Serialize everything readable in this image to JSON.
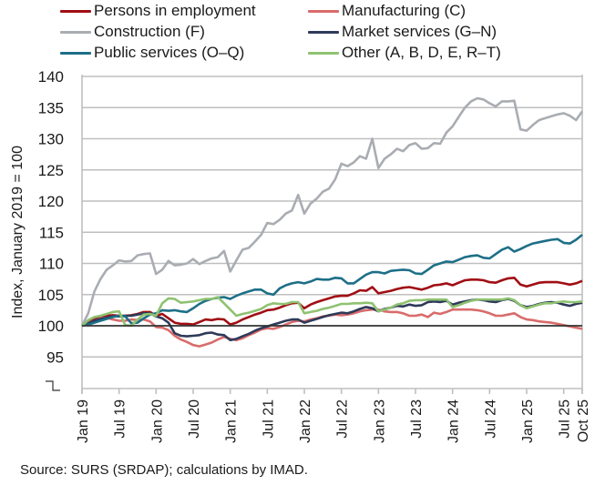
{
  "chart_data": {
    "type": "line",
    "title": "",
    "xlabel": "",
    "ylabel": "Index, January 2019 = 100",
    "ylim": [
      95,
      140
    ],
    "yticks": [
      95,
      100,
      105,
      110,
      115,
      120,
      125,
      130,
      135,
      140
    ],
    "grid": true,
    "legend_position": "top",
    "reference_line": 100,
    "x_start": "2019-01",
    "x_end": "2025-10",
    "x_tick_labels": [
      {
        "label": "Jan 19",
        "month_index": 0
      },
      {
        "label": "Jul 19",
        "month_index": 6
      },
      {
        "label": "Jan 20",
        "month_index": 12
      },
      {
        "label": "Jul 20",
        "month_index": 18
      },
      {
        "label": "Jan 21",
        "month_index": 24
      },
      {
        "label": "Jul 21",
        "month_index": 30
      },
      {
        "label": "Jan 22",
        "month_index": 36
      },
      {
        "label": "Jul 22",
        "month_index": 42
      },
      {
        "label": "Jan 23",
        "month_index": 48
      },
      {
        "label": "Jul 23",
        "month_index": 54
      },
      {
        "label": "Jan 24",
        "month_index": 60
      },
      {
        "label": "Jul 24",
        "month_index": 66
      },
      {
        "label": "Jan 25",
        "month_index": 72
      },
      {
        "label": "Jul 25",
        "month_index": 78
      },
      {
        "label": "Oct 25",
        "month_index": 81
      }
    ],
    "series": [
      {
        "name": "Persons in employment",
        "color": "#a00e14",
        "values": [
          100,
          100.6,
          101.0,
          101.3,
          101.6,
          101.7,
          101.6,
          101.6,
          101.7,
          101.9,
          102.2,
          102.2,
          101.6,
          101.9,
          101.2,
          100.5,
          100.3,
          100.3,
          100.2,
          100.6,
          101.0,
          100.9,
          101.1,
          101.0,
          100.2,
          100.5,
          101.0,
          101.4,
          101.8,
          102.1,
          102.5,
          102.6,
          102.9,
          103.3,
          103.6,
          103.7,
          102.8,
          103.4,
          103.8,
          104.1,
          104.4,
          104.7,
          104.8,
          104.8,
          105.2,
          105.7,
          105.6,
          106.2,
          105.2,
          105.4,
          105.6,
          105.9,
          106.1,
          106.2,
          106.0,
          105.8,
          106.1,
          106.5,
          106.6,
          106.8,
          106.5,
          106.9,
          107.3,
          107.4,
          107.4,
          107.3,
          107.0,
          106.9,
          107.3,
          107.6,
          107.7,
          106.6,
          106.3,
          106.6,
          106.9,
          107.0,
          107.0,
          107.0,
          106.8,
          106.6,
          106.8,
          107.2
        ]
      },
      {
        "name": "Manufacturing (C)",
        "color": "#d96b6b",
        "values": [
          100,
          100.5,
          100.8,
          101.2,
          101.3,
          101.0,
          100.8,
          100.8,
          101.0,
          100.9,
          101.0,
          100.7,
          99.8,
          99.7,
          99.3,
          98.4,
          97.8,
          97.4,
          96.9,
          96.7,
          97.0,
          97.3,
          97.8,
          98.2,
          97.9,
          97.7,
          98.0,
          98.5,
          98.9,
          99.4,
          99.6,
          99.5,
          99.8,
          100.2,
          100.6,
          100.8,
          100.7,
          101.0,
          101.2,
          101.5,
          101.6,
          101.8,
          101.7,
          101.8,
          102.0,
          102.3,
          102.5,
          102.6,
          102.6,
          102.3,
          102.2,
          102.2,
          102.0,
          101.6,
          101.6,
          101.8,
          101.4,
          102.1,
          101.9,
          102.2,
          102.6,
          102.6,
          102.6,
          102.6,
          102.5,
          102.3,
          102.0,
          101.6,
          101.6,
          101.8,
          102.0,
          101.4,
          101.0,
          100.9,
          100.7,
          100.6,
          100.5,
          100.3,
          100.1,
          99.9,
          99.7,
          99.5
        ]
      },
      {
        "name": "Construction (F)",
        "color": "#a9adb2",
        "values": [
          100,
          102.0,
          105.5,
          107.5,
          109.0,
          109.7,
          110.5,
          110.3,
          110.4,
          111.3,
          111.5,
          111.6,
          108.3,
          109.0,
          110.4,
          109.7,
          109.8,
          110.0,
          110.7,
          109.9,
          110.4,
          110.8,
          111.0,
          112.0,
          108.7,
          110.5,
          112.2,
          112.5,
          113.5,
          114.6,
          116.5,
          116.3,
          117.0,
          118.0,
          118.5,
          121.0,
          118.0,
          119.6,
          120.4,
          121.5,
          122.0,
          123.5,
          126.0,
          125.6,
          126.2,
          127.2,
          126.8,
          130.0,
          125.3,
          126.8,
          127.5,
          128.4,
          128.0,
          129.0,
          129.3,
          128.4,
          128.5,
          129.3,
          129.2,
          131.0,
          132.0,
          133.5,
          135.0,
          136.0,
          136.5,
          136.3,
          135.7,
          135.2,
          136.0,
          136.0,
          136.1,
          131.5,
          131.3,
          132.2,
          133.0,
          133.3,
          133.6,
          133.9,
          134.1,
          133.7,
          133.0,
          134.4
        ]
      },
      {
        "name": "Market services (G–N)",
        "color": "#2e3a59",
        "values": [
          100,
          100.4,
          100.8,
          101.1,
          101.3,
          101.5,
          101.5,
          101.6,
          101.6,
          101.8,
          102.0,
          102.0,
          101.5,
          101.2,
          100.5,
          98.8,
          98.4,
          98.3,
          98.4,
          98.5,
          98.8,
          98.9,
          98.6,
          98.5,
          97.7,
          97.9,
          98.3,
          98.7,
          99.2,
          99.6,
          99.9,
          100.2,
          100.5,
          100.8,
          101.0,
          101.0,
          100.5,
          100.8,
          101.1,
          101.4,
          101.7,
          101.9,
          102.1,
          102.0,
          102.3,
          102.7,
          103.0,
          102.8,
          102.3,
          102.7,
          102.9,
          103.2,
          103.1,
          103.4,
          103.2,
          103.3,
          103.8,
          103.9,
          103.8,
          104.0,
          103.4,
          103.7,
          103.9,
          104.1,
          104.2,
          104.1,
          103.9,
          103.8,
          104.1,
          104.3,
          104.0,
          103.3,
          103.0,
          103.2,
          103.5,
          103.7,
          103.8,
          103.7,
          103.4,
          103.2,
          103.5,
          103.7
        ]
      },
      {
        "name": "Public services (O–Q)",
        "color": "#1d6f87",
        "values": [
          100,
          100.2,
          100.5,
          100.8,
          101.1,
          101.4,
          101.6,
          101.5,
          100.4,
          100.5,
          101.2,
          101.8,
          102.0,
          102.5,
          102.4,
          102.5,
          102.3,
          102.2,
          102.8,
          103.5,
          104.0,
          104.3,
          104.5,
          104.6,
          104.3,
          104.8,
          105.2,
          105.5,
          105.8,
          105.8,
          105.2,
          105.0,
          106.0,
          106.5,
          106.8,
          107.0,
          106.8,
          107.1,
          107.5,
          107.4,
          107.4,
          107.7,
          107.6,
          106.8,
          106.8,
          107.5,
          108.2,
          108.6,
          108.6,
          108.4,
          108.8,
          108.9,
          109.0,
          108.9,
          108.4,
          108.3,
          109.0,
          109.7,
          110.0,
          110.3,
          110.2,
          110.6,
          111.0,
          111.2,
          111.3,
          110.9,
          110.8,
          111.5,
          112.2,
          112.6,
          111.9,
          112.3,
          112.8,
          113.2,
          113.4,
          113.6,
          113.8,
          113.9,
          113.3,
          113.2,
          113.8,
          114.6
        ]
      },
      {
        "name": "Other (A, B, D, E, R–T)",
        "color": "#8fc271",
        "values": [
          100,
          100.9,
          101.4,
          101.6,
          101.9,
          102.2,
          102.3,
          100.1,
          100.0,
          101.0,
          101.8,
          101.9,
          101.6,
          103.6,
          104.4,
          104.3,
          103.7,
          103.8,
          103.9,
          104.1,
          104.3,
          104.3,
          104.6,
          103.6,
          102.6,
          101.6,
          101.9,
          102.1,
          102.4,
          102.7,
          103.3,
          103.6,
          103.5,
          103.5,
          103.8,
          103.8,
          102.0,
          102.2,
          102.4,
          102.7,
          102.9,
          103.2,
          103.5,
          103.5,
          103.6,
          103.6,
          103.7,
          103.6,
          102.3,
          102.6,
          102.9,
          103.4,
          103.6,
          104.0,
          104.1,
          104.1,
          104.2,
          104.2,
          104.2,
          104.2,
          103.0,
          103.3,
          103.7,
          104.0,
          104.2,
          104.2,
          104.2,
          104.2,
          104.2,
          104.4,
          104.1,
          103.3,
          102.8,
          103.1,
          103.4,
          103.6,
          103.6,
          103.8,
          103.9,
          103.8,
          103.8,
          103.9
        ]
      }
    ]
  },
  "source": "Source: SURS (SRDAP); calculations by IMAD."
}
